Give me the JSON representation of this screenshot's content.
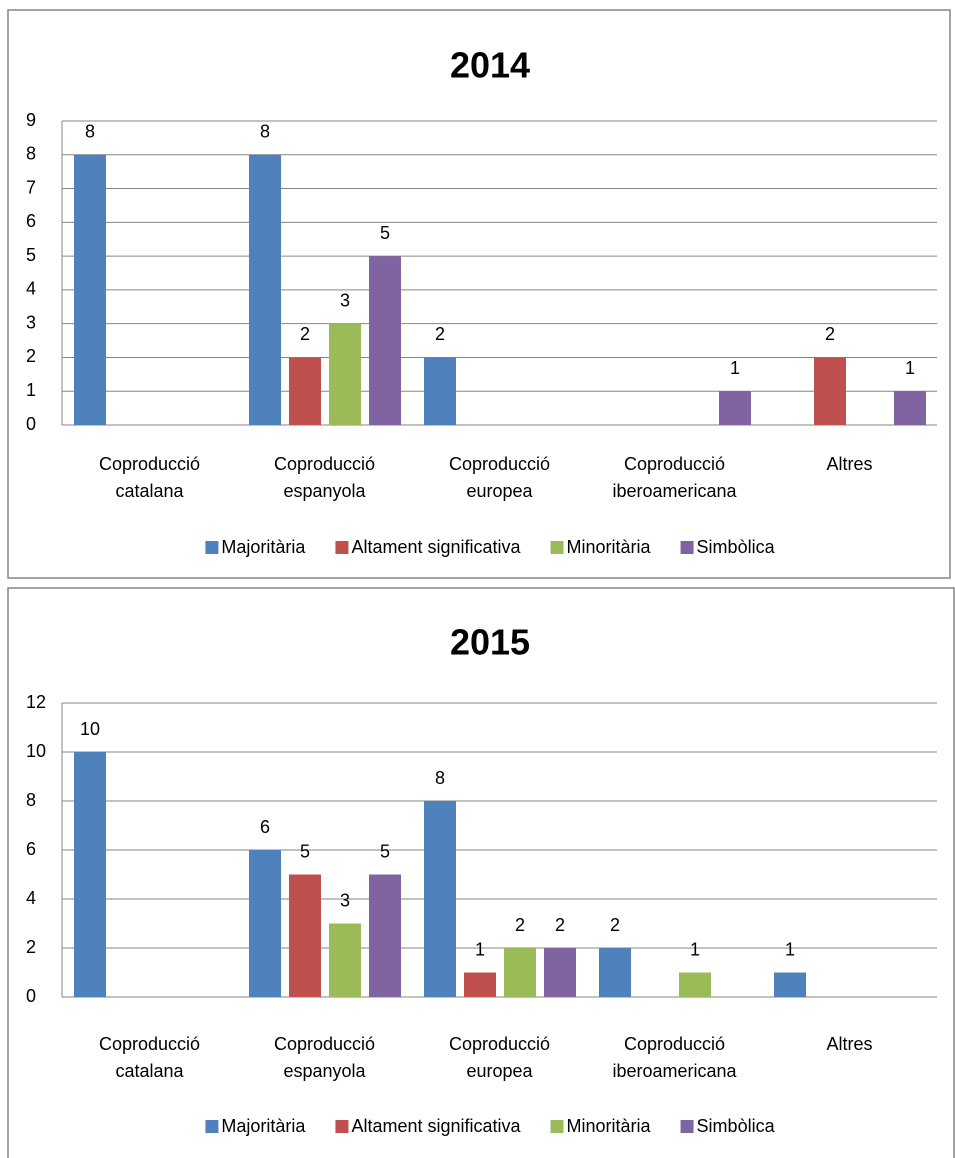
{
  "chart_data": [
    {
      "type": "bar",
      "title": "2014",
      "categories": [
        "Coproducció catalana",
        "Coproducció espanyola",
        "Coproducció europea",
        "Coproducció iberoamericana",
        "Altres"
      ],
      "series": [
        {
          "name": "Majoritària",
          "color": "#4f81bd",
          "values": [
            8,
            8,
            2,
            null,
            null
          ]
        },
        {
          "name": "Altament significativa",
          "color": "#c0504d",
          "values": [
            null,
            2,
            null,
            null,
            2
          ]
        },
        {
          "name": "Minoritària",
          "color": "#9bbb59",
          "values": [
            null,
            3,
            null,
            null,
            null
          ]
        },
        {
          "name": "Simbòlica",
          "color": "#8064a2",
          "values": [
            null,
            5,
            null,
            1,
            1
          ]
        }
      ],
      "ylim": [
        0,
        9
      ],
      "yticks": [
        0,
        1,
        2,
        3,
        4,
        5,
        6,
        7,
        8,
        9
      ],
      "grid": true,
      "legend": "bottom"
    },
    {
      "type": "bar",
      "title": "2015",
      "categories": [
        "Coproducció catalana",
        "Coproducció espanyola",
        "Coproducció europea",
        "Coproducció iberoamericana",
        "Altres"
      ],
      "series": [
        {
          "name": "Majoritària",
          "color": "#4f81bd",
          "values": [
            10,
            6,
            8,
            2,
            1
          ]
        },
        {
          "name": "Altament significativa",
          "color": "#c0504d",
          "values": [
            null,
            5,
            1,
            null,
            null
          ]
        },
        {
          "name": "Minoritària",
          "color": "#9bbb59",
          "values": [
            null,
            3,
            2,
            1,
            null
          ]
        },
        {
          "name": "Simbòlica",
          "color": "#8064a2",
          "values": [
            null,
            5,
            2,
            null,
            null
          ]
        }
      ],
      "ylim": [
        0,
        12
      ],
      "yticks": [
        0,
        2,
        4,
        6,
        8,
        10,
        12
      ],
      "grid": true,
      "legend": "bottom"
    }
  ]
}
